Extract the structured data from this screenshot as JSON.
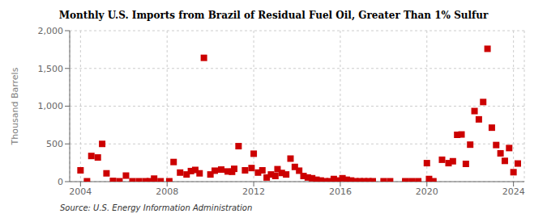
{
  "chart_data": {
    "type": "scatter",
    "title": "Monthly U.S. Imports from Brazil of Residual Fuel Oil, Greater Than 1% Sulfur",
    "ylabel": "Thousand Barrels",
    "annotations": [
      "Source: U.S. Energy Information Administration"
    ],
    "color": "#cc0000",
    "marker": "square",
    "grid": true,
    "xlim": [
      2003.5,
      2024.5
    ],
    "xticks": [
      2004,
      2008,
      2012,
      2016,
      2020,
      2024
    ],
    "ylim": [
      0,
      2000
    ],
    "yticks": [
      0,
      500,
      {
        "value": 1000,
        "label": "1,000"
      },
      {
        "value": 1500,
        "label": "1,500"
      },
      {
        "value": 2000,
        "label": "2,000"
      }
    ],
    "x": [
      2004.0,
      2004.3,
      2004.5,
      2004.8,
      2005.0,
      2005.2,
      2005.5,
      2005.8,
      2006.1,
      2006.4,
      2006.7,
      2007.0,
      2007.2,
      2007.4,
      2007.7,
      2008.1,
      2008.3,
      2008.6,
      2008.9,
      2009.1,
      2009.3,
      2009.5,
      2009.7,
      2010.0,
      2010.2,
      2010.5,
      2010.8,
      2011.0,
      2011.1,
      2011.3,
      2011.6,
      2011.9,
      2012.0,
      2012.2,
      2012.4,
      2012.6,
      2012.8,
      2013.0,
      2013.1,
      2013.3,
      2013.5,
      2013.7,
      2013.9,
      2014.1,
      2014.3,
      2014.5,
      2014.7,
      2014.9,
      2015.1,
      2015.3,
      2015.5,
      2015.7,
      2015.9,
      2016.1,
      2016.3,
      2016.5,
      2016.7,
      2016.9,
      2017.1,
      2017.3,
      2017.5,
      2018.0,
      2018.3,
      2019.0,
      2019.3,
      2019.6,
      2020.0,
      2020.1,
      2020.3,
      2020.7,
      2021.0,
      2021.2,
      2021.4,
      2021.6,
      2021.8,
      2022.0,
      2022.2,
      2022.4,
      2022.6,
      2022.8,
      2023.0,
      2023.2,
      2023.4,
      2023.6,
      2023.8,
      2024.0,
      2024.2
    ],
    "values": [
      150,
      5,
      340,
      320,
      500,
      110,
      10,
      5,
      80,
      5,
      5,
      5,
      5,
      40,
      5,
      5,
      260,
      120,
      95,
      140,
      155,
      110,
      1640,
      95,
      145,
      160,
      135,
      130,
      170,
      470,
      150,
      180,
      370,
      120,
      150,
      55,
      95,
      75,
      165,
      115,
      95,
      305,
      195,
      145,
      75,
      55,
      45,
      25,
      15,
      5,
      5,
      35,
      15,
      45,
      25,
      15,
      5,
      5,
      5,
      5,
      5,
      5,
      5,
      5,
      5,
      5,
      245,
      35,
      5,
      290,
      245,
      270,
      620,
      625,
      235,
      490,
      935,
      825,
      1055,
      1760,
      715,
      485,
      375,
      275,
      445,
      125,
      240
    ]
  }
}
